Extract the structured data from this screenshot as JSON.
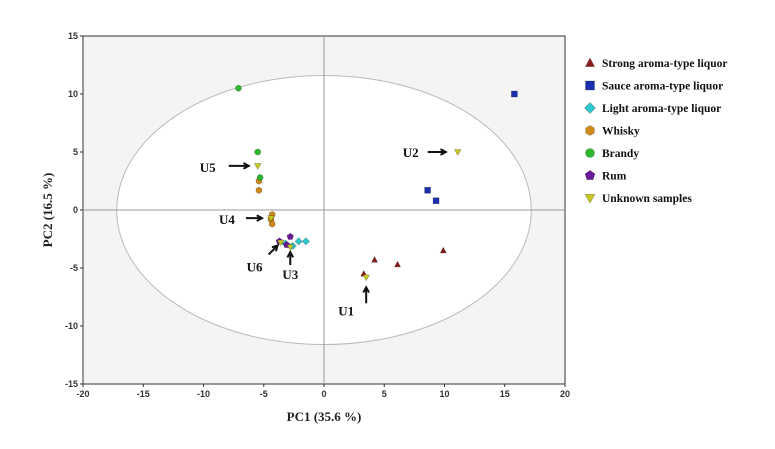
{
  "chart_data": {
    "type": "scatter",
    "xlabel": "PC1 (35.6 %)",
    "ylabel": "PC2 (16.5 %)",
    "xlim": [
      -20,
      20
    ],
    "ylim": [
      -15,
      15
    ],
    "xticks": [
      -20,
      -15,
      -10,
      -5,
      0,
      5,
      10,
      15,
      20
    ],
    "yticks": [
      -15,
      -10,
      -5,
      0,
      5,
      10,
      15
    ],
    "confidence_ellipse": {
      "center": [
        0,
        0
      ],
      "radii": [
        17.2,
        11.6
      ]
    },
    "legend_position": "right",
    "series": [
      {
        "name": "Strong aroma-type liquor",
        "marker": "triangle-up",
        "color": "#8b1a1a",
        "x": [
          3.3,
          4.2,
          6.1,
          9.9
        ],
        "y": [
          -5.5,
          -4.3,
          -4.7,
          -3.5
        ]
      },
      {
        "name": "Sauce aroma-type liquor",
        "marker": "square",
        "color": "#1a2fb0",
        "x": [
          15.8,
          8.6,
          9.3
        ],
        "y": [
          10.0,
          1.7,
          0.8
        ]
      },
      {
        "name": "Light aroma-type liquor",
        "marker": "diamond",
        "color": "#2ec8d0",
        "x": [
          -3.2,
          -2.6,
          -2.1,
          -1.5
        ],
        "y": [
          -2.9,
          -3.1,
          -2.7,
          -2.7
        ]
      },
      {
        "name": "Whisky",
        "marker": "hexagon",
        "color": "#d08a1a",
        "x": [
          -5.4,
          -5.4,
          -4.3,
          -4.4,
          -4.3
        ],
        "y": [
          2.5,
          1.7,
          -0.4,
          -0.8,
          -1.2
        ]
      },
      {
        "name": "Brandy",
        "marker": "circle",
        "color": "#2db82d",
        "x": [
          -7.1,
          -5.5,
          -5.3
        ],
        "y": [
          10.5,
          5.0,
          2.8
        ]
      },
      {
        "name": "Rum",
        "marker": "pentagon",
        "color": "#6a1a9a",
        "x": [
          -3.7,
          -2.8,
          -3.1
        ],
        "y": [
          -2.7,
          -2.3,
          -3.0
        ]
      },
      {
        "name": "Unknown samples",
        "marker": "triangle-down",
        "color": "#c8c820",
        "x": [
          3.5,
          11.1,
          -5.5,
          -4.4,
          -3.6,
          -2.8
        ],
        "y": [
          -5.8,
          5.0,
          3.8,
          -0.7,
          -2.8,
          -3.2
        ]
      }
    ],
    "annotations": [
      {
        "label": "U1",
        "x": 3.5,
        "y": -5.8
      },
      {
        "label": "U2",
        "x": 11.1,
        "y": 5.0
      },
      {
        "label": "U3",
        "x": -2.8,
        "y": -3.2
      },
      {
        "label": "U4",
        "x": -4.4,
        "y": -0.7
      },
      {
        "label": "U5",
        "x": -5.5,
        "y": 3.8
      },
      {
        "label": "U6",
        "x": -3.6,
        "y": -2.8
      }
    ]
  }
}
